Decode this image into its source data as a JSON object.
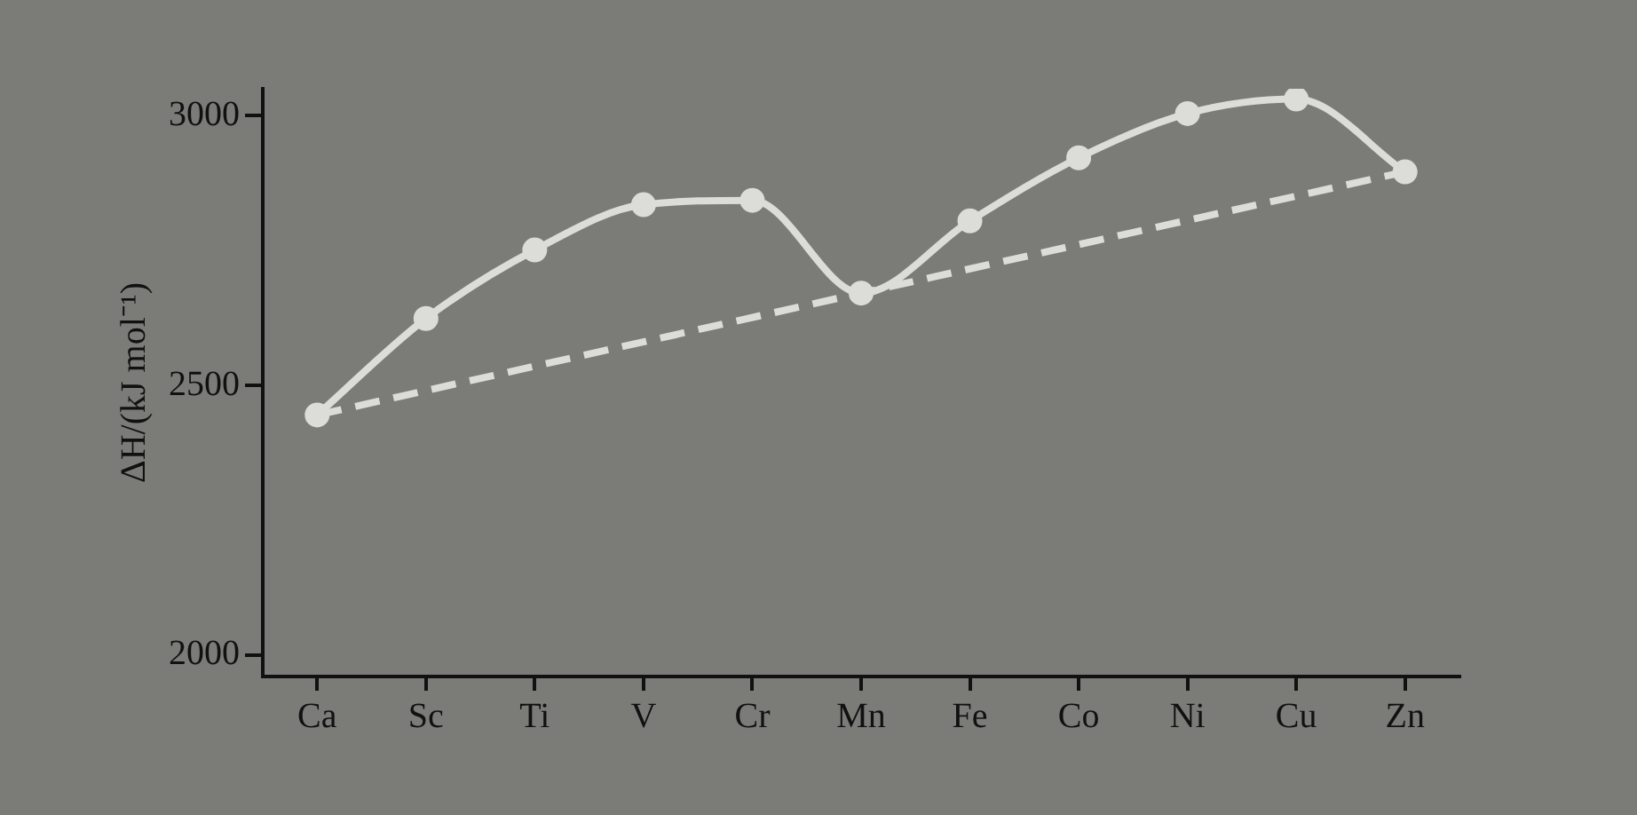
{
  "chart_data": {
    "type": "line",
    "ylabel": "ΔH/(kJ mol⁻¹)",
    "categories": [
      "Ca",
      "Sc",
      "Ti",
      "V",
      "Cr",
      "Mn",
      "Fe",
      "Co",
      "Ni",
      "Cu",
      "Zn"
    ],
    "series": [
      {
        "color": "#dcdcd8",
        "marker": "circle",
        "line_style": "solid",
        "values": [
          2445,
          2624,
          2751,
          2835,
          2843,
          2671,
          2805,
          2922,
          3004,
          3031,
          2896
        ]
      },
      {
        "color": "#dcdcd8",
        "marker": "none",
        "line_style": "dashed",
        "values": [
          2445,
          null,
          null,
          null,
          null,
          2671,
          null,
          null,
          null,
          null,
          2896
        ]
      }
    ],
    "ylim": [
      1960,
      3050
    ],
    "yticks": [
      2000,
      2500,
      3000
    ],
    "grid": false
  }
}
